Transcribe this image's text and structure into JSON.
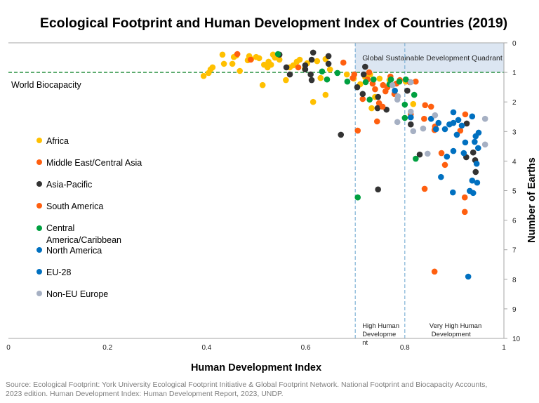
{
  "chart_data": {
    "type": "scatter",
    "title": "Ecological Footprint and Human Development Index of Countries (2019)",
    "xlabel": "Human Development Index",
    "ylabel": "Number of Earths",
    "xlim": [
      0,
      1
    ],
    "ylim": [
      0,
      10
    ],
    "y_inverted": true,
    "y_axis_side": "right",
    "x_ticks": [
      "0",
      "0.2",
      "0.4",
      "0.6",
      "0.8",
      "1"
    ],
    "y_ticks": [
      "0",
      "1",
      "2",
      "3",
      "4",
      "5",
      "6",
      "7",
      "8",
      "9",
      "10"
    ],
    "grid": false,
    "legend_position": "left",
    "annotations": {
      "biocapacity_line": {
        "y": 1,
        "label": "World Biocapacity",
        "color": "#3a9a50"
      },
      "quadrant": {
        "x": [
          0.7,
          1
        ],
        "y": [
          0,
          1
        ],
        "label": "Global Sustainable Development Quadrant",
        "color": "#dce6f2"
      },
      "high_hdi": {
        "x": 0.7,
        "label": "High Human Developme nt"
      },
      "very_high_hdi": {
        "x": 0.8,
        "label": "Very High Human Development"
      }
    },
    "series": [
      {
        "name": "Africa",
        "color": "#ffc000",
        "points": [
          [
            0.394,
            1.12
          ],
          [
            0.404,
            1.02
          ],
          [
            0.408,
            0.9
          ],
          [
            0.412,
            0.83
          ],
          [
            0.432,
            0.4
          ],
          [
            0.435,
            0.71
          ],
          [
            0.452,
            0.71
          ],
          [
            0.455,
            0.48
          ],
          [
            0.46,
            0.43
          ],
          [
            0.467,
            0.95
          ],
          [
            0.483,
            0.59
          ],
          [
            0.486,
            0.45
          ],
          [
            0.49,
            0.55
          ],
          [
            0.5,
            0.48
          ],
          [
            0.506,
            0.52
          ],
          [
            0.513,
            1.43
          ],
          [
            0.516,
            0.74
          ],
          [
            0.523,
            0.83
          ],
          [
            0.525,
            0.64
          ],
          [
            0.53,
            0.74
          ],
          [
            0.534,
            0.4
          ],
          [
            0.538,
            0.5
          ],
          [
            0.547,
            0.57
          ],
          [
            0.56,
            1.26
          ],
          [
            0.568,
            0.83
          ],
          [
            0.575,
            0.76
          ],
          [
            0.582,
            0.64
          ],
          [
            0.588,
            0.57
          ],
          [
            0.598,
            0.88
          ],
          [
            0.603,
            0.69
          ],
          [
            0.615,
            2.0
          ],
          [
            0.623,
            0.62
          ],
          [
            0.63,
            1.19
          ],
          [
            0.64,
            1.76
          ],
          [
            0.649,
            0.9
          ],
          [
            0.64,
            0.55
          ],
          [
            0.683,
            1.07
          ],
          [
            0.697,
            1.21
          ],
          [
            0.71,
            1.4
          ],
          [
            0.72,
            1.16
          ],
          [
            0.73,
            1.07
          ],
          [
            0.74,
            1.83
          ],
          [
            0.733,
            2.21
          ],
          [
            0.749,
            1.21
          ],
          [
            0.769,
            1.26
          ],
          [
            0.802,
            1.31
          ],
          [
            0.817,
            2.07
          ]
        ]
      },
      {
        "name": "Middle East/Central Asia",
        "color": "#ff5f0f",
        "points": [
          [
            0.462,
            0.38
          ],
          [
            0.489,
            0.57
          ],
          [
            0.585,
            0.83
          ],
          [
            0.676,
            0.67
          ],
          [
            0.698,
            1.07
          ],
          [
            0.695,
            1.19
          ],
          [
            0.728,
            1.0
          ],
          [
            0.725,
            1.24
          ],
          [
            0.715,
            1.9
          ],
          [
            0.735,
            1.38
          ],
          [
            0.74,
            1.57
          ],
          [
            0.748,
            2.04
          ],
          [
            0.756,
            1.43
          ],
          [
            0.765,
            1.5
          ],
          [
            0.771,
            1.14
          ],
          [
            0.79,
            1.26
          ],
          [
            0.81,
            1.33
          ],
          [
            0.822,
            1.31
          ],
          [
            0.812,
            2.42
          ],
          [
            0.841,
            2.11
          ],
          [
            0.853,
            2.16
          ],
          [
            0.922,
            2.42
          ],
          [
            0.912,
            2.97
          ]
        ]
      },
      {
        "name": "Asia-Pacific",
        "color": "#333333",
        "points": [
          [
            0.547,
            0.4
          ],
          [
            0.615,
            0.33
          ],
          [
            0.646,
            0.45
          ],
          [
            0.646,
            0.71
          ],
          [
            0.561,
            0.83
          ],
          [
            0.568,
            1.07
          ],
          [
            0.599,
            0.76
          ],
          [
            0.599,
            0.9
          ],
          [
            0.61,
            1.07
          ],
          [
            0.612,
            1.26
          ],
          [
            0.612,
            0.57
          ],
          [
            0.72,
            0.81
          ],
          [
            0.717,
            1.07
          ],
          [
            0.704,
            1.5
          ],
          [
            0.715,
            1.73
          ],
          [
            0.746,
            1.83
          ],
          [
            0.745,
            2.21
          ],
          [
            0.763,
            2.26
          ],
          [
            0.671,
            3.11
          ],
          [
            0.805,
            1.62
          ],
          [
            0.812,
            2.76
          ],
          [
            0.746,
            4.96
          ],
          [
            0.83,
            3.78
          ],
          [
            0.925,
            2.73
          ],
          [
            0.938,
            3.71
          ],
          [
            0.924,
            3.87
          ],
          [
            0.942,
            3.97
          ],
          [
            0.943,
            4.37
          ]
        ]
      },
      {
        "name": "South America",
        "color": "#ff5f0f",
        "points": [
          [
            0.705,
            2.97
          ],
          [
            0.744,
            2.66
          ],
          [
            0.755,
            2.16
          ],
          [
            0.761,
            1.64
          ],
          [
            0.779,
            1.73
          ],
          [
            0.783,
            1.38
          ],
          [
            0.861,
            2.83
          ],
          [
            0.874,
            3.73
          ],
          [
            0.881,
            4.13
          ],
          [
            0.84,
            4.94
          ],
          [
            0.839,
            2.57
          ],
          [
            0.921,
            5.23
          ],
          [
            0.921,
            5.72
          ],
          [
            0.86,
            7.74
          ],
          [
            0.86,
            2.95
          ]
        ]
      },
      {
        "name": "Central America/Caribbean",
        "color": "#00a040",
        "points": [
          [
            0.544,
            0.38
          ],
          [
            0.633,
            0.97
          ],
          [
            0.643,
            1.24
          ],
          [
            0.664,
            1.02
          ],
          [
            0.684,
            1.31
          ],
          [
            0.721,
            1.33
          ],
          [
            0.729,
            1.92
          ],
          [
            0.737,
            1.24
          ],
          [
            0.772,
            1.24
          ],
          [
            0.769,
            1.4
          ],
          [
            0.789,
            1.31
          ],
          [
            0.802,
            1.24
          ],
          [
            0.819,
            1.76
          ],
          [
            0.8,
            2.09
          ],
          [
            0.8,
            2.54
          ],
          [
            0.822,
            3.92
          ],
          [
            0.705,
            5.23
          ]
        ]
      },
      {
        "name": "North America",
        "color": "#0070c0",
        "points": [
          [
            0.885,
            3.85
          ],
          [
            0.898,
            3.66
          ],
          [
            0.919,
            3.73
          ],
          [
            0.873,
            4.54
          ]
        ]
      },
      {
        "name": "EU-28",
        "color": "#0070c0",
        "points": [
          [
            0.78,
            1.62
          ],
          [
            0.812,
            2.52
          ],
          [
            0.853,
            2.57
          ],
          [
            0.868,
            2.71
          ],
          [
            0.863,
            2.92
          ],
          [
            0.881,
            2.92
          ],
          [
            0.89,
            2.76
          ],
          [
            0.898,
            2.35
          ],
          [
            0.898,
            2.71
          ],
          [
            0.908,
            2.61
          ],
          [
            0.915,
            2.8
          ],
          [
            0.936,
            2.49
          ],
          [
            0.905,
            3.11
          ],
          [
            0.922,
            3.37
          ],
          [
            0.941,
            3.35
          ],
          [
            0.943,
            3.16
          ],
          [
            0.949,
            3.04
          ],
          [
            0.948,
            3.56
          ],
          [
            0.945,
            4.09
          ],
          [
            0.936,
            4.66
          ],
          [
            0.946,
            4.73
          ],
          [
            0.897,
            5.06
          ],
          [
            0.931,
            5.01
          ],
          [
            0.938,
            5.08
          ],
          [
            0.928,
            7.91
          ]
        ]
      },
      {
        "name": "Non-EU Europe",
        "color": "#a6b0c3",
        "points": [
          [
            0.775,
            1.43
          ],
          [
            0.812,
            1.33
          ],
          [
            0.786,
            1.81
          ],
          [
            0.785,
            1.92
          ],
          [
            0.785,
            2.68
          ],
          [
            0.812,
            2.33
          ],
          [
            0.817,
            2.99
          ],
          [
            0.837,
            2.9
          ],
          [
            0.861,
            2.45
          ],
          [
            0.846,
            3.75
          ],
          [
            0.962,
            2.57
          ],
          [
            0.962,
            3.44
          ]
        ]
      }
    ]
  },
  "source": "Source: Ecological Footprint: York University Ecological Footprint Initiative & Global Footprint Network. National Footprint and Biocapacity Accounts, 2023 edition.  Human Development Index: Human Development Report, 2023, UNDP."
}
